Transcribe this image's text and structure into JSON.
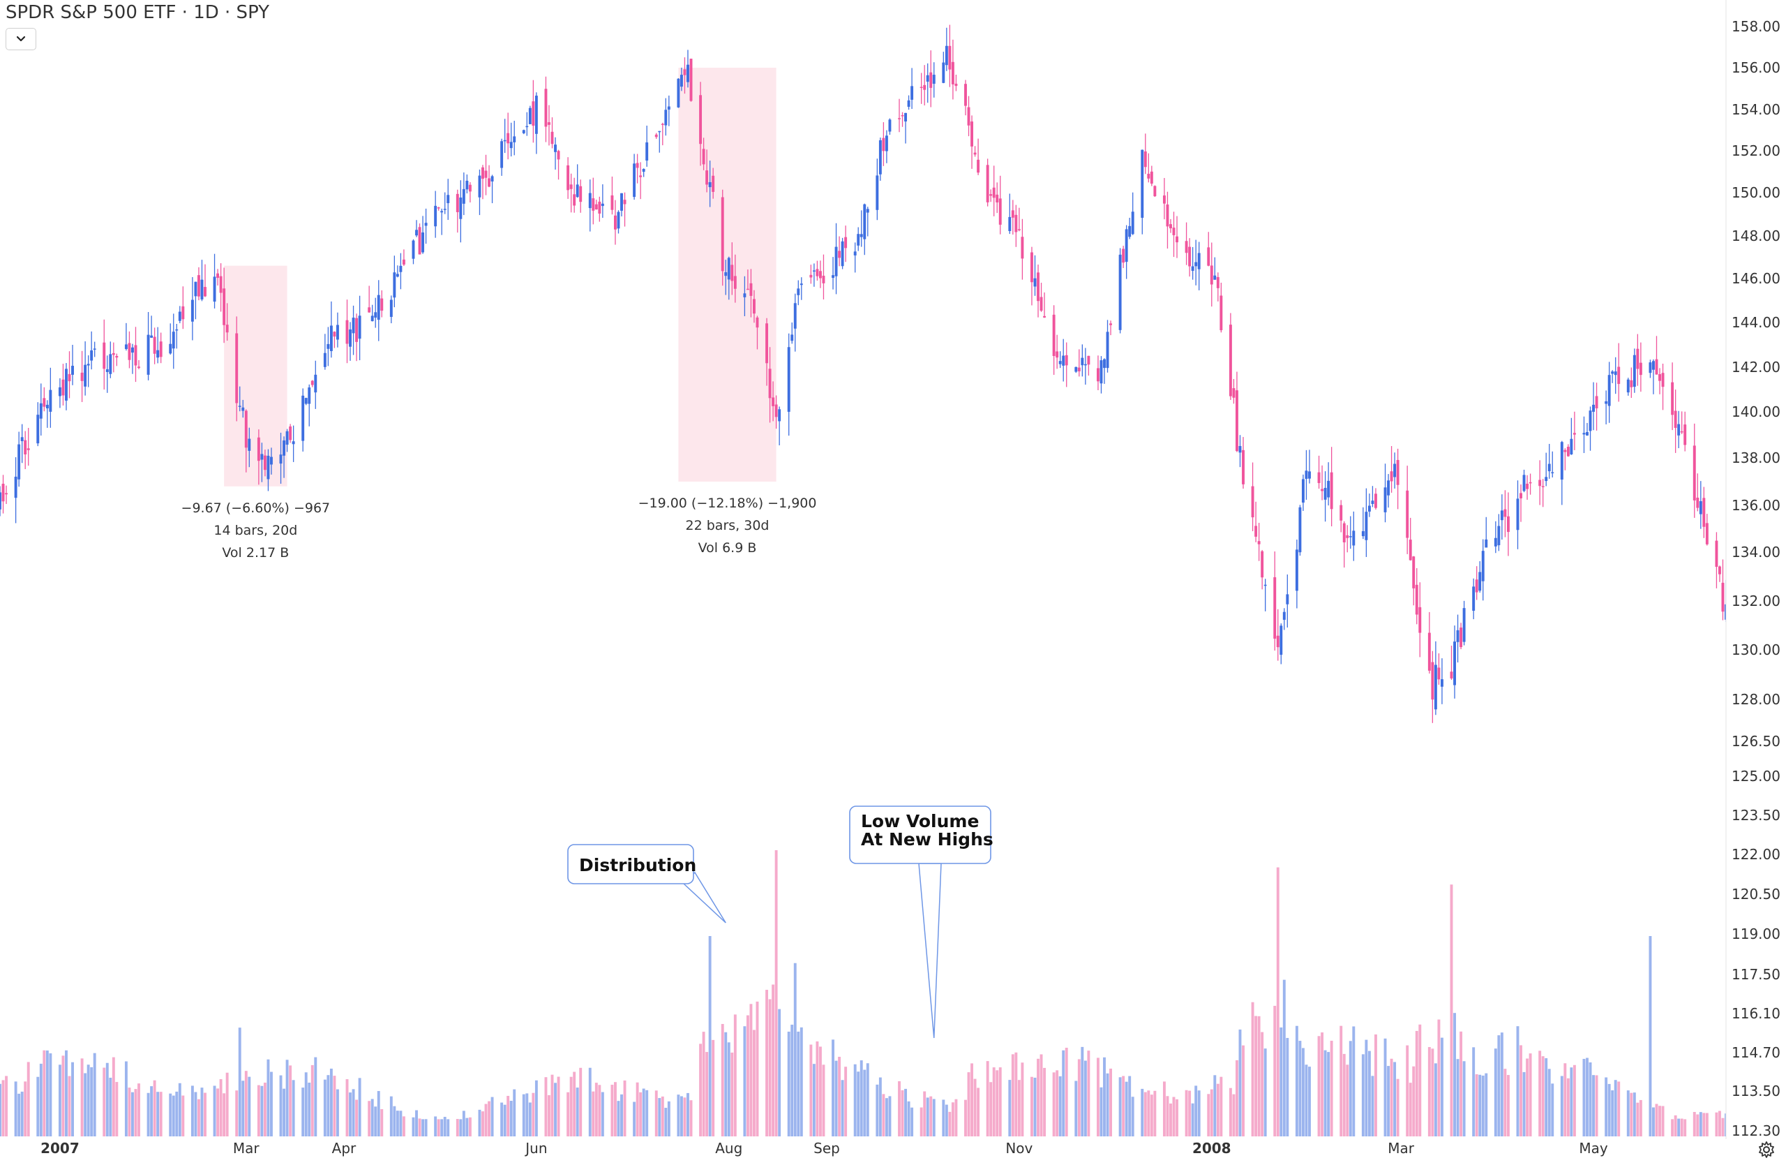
{
  "header": {
    "title": "SPDR S&P 500 ETF · 1D · SPY"
  },
  "colors": {
    "up": "#3d6ee0",
    "down": "#f0549c",
    "up_volume": "#9bb4ee",
    "down_volume": "#f5aacb",
    "range_highlight": "#fde7ec",
    "callout_border": "#6e96e6",
    "axis_text": "#333333"
  },
  "icons": {
    "dropdown": "chevron-down-icon",
    "settings": "gear-icon"
  },
  "measurements": [
    {
      "line1": "−9.67 (−6.60%) −967",
      "line2": "14 bars, 20d",
      "line3": "Vol 2.17 B",
      "from": "2007-02-22",
      "to": "2007-03-14",
      "high": 146.6,
      "low": 136.8
    },
    {
      "line1": "−19.00 (−12.18%) −1,900",
      "line2": "22 bars, 30d",
      "line3": "Vol 6.9 B",
      "from": "2007-07-16",
      "to": "2007-08-16",
      "high": 156.0,
      "low": 137.0
    }
  ],
  "callouts": [
    {
      "label_lines": [
        "Distribution"
      ],
      "points_to": "2007-07-31"
    },
    {
      "label_lines": [
        "Low Volume",
        "At New Highs"
      ],
      "points_to": "2007-10-05"
    }
  ],
  "chart_data": {
    "type": "candlestick",
    "title": "SPDR S&P 500 ETF · 1D · SPY",
    "x_axis": {
      "type": "date",
      "range": [
        "2006-12-13",
        "2008-06-12"
      ],
      "tick_labels": [
        {
          "label": "2007",
          "date": "2007-01-01",
          "bold": true
        },
        {
          "label": "Mar",
          "date": "2007-03-01",
          "bold": false
        },
        {
          "label": "Apr",
          "date": "2007-04-01",
          "bold": false
        },
        {
          "label": "Jun",
          "date": "2007-06-01",
          "bold": false
        },
        {
          "label": "Aug",
          "date": "2007-08-01",
          "bold": false
        },
        {
          "label": "Sep",
          "date": "2007-09-01",
          "bold": false
        },
        {
          "label": "Nov",
          "date": "2007-11-01",
          "bold": false
        },
        {
          "label": "2008",
          "date": "2008-01-01",
          "bold": true
        },
        {
          "label": "Mar",
          "date": "2008-03-01",
          "bold": false
        },
        {
          "label": "May",
          "date": "2008-05-01",
          "bold": false
        }
      ]
    },
    "y_axis": {
      "position": "right",
      "scale": "nonlinear-labelled",
      "tick_labels": [
        "158.00",
        "156.00",
        "154.00",
        "152.00",
        "150.00",
        "148.00",
        "146.00",
        "144.00",
        "142.00",
        "140.00",
        "138.00",
        "136.00",
        "134.00",
        "132.00",
        "130.00",
        "128.00",
        "126.50",
        "125.00",
        "123.50",
        "122.00",
        "120.50",
        "119.00",
        "117.50",
        "116.10",
        "114.70",
        "113.50",
        "112.30"
      ],
      "tick_values": [
        158,
        156,
        154,
        152,
        150,
        148,
        146,
        144,
        142,
        140,
        138,
        136,
        134,
        132,
        130,
        128,
        126.5,
        125,
        123.5,
        122,
        120.5,
        119,
        117.5,
        116.1,
        114.7,
        113.5,
        112.3
      ]
    },
    "price_keypoints": [
      [
        "2006-12-13",
        136.2
      ],
      [
        "2006-12-28",
        140.6
      ],
      [
        "2007-01-12",
        142.3
      ],
      [
        "2007-01-31",
        142.8
      ],
      [
        "2007-02-20",
        146.4
      ],
      [
        "2007-02-27",
        140.0
      ],
      [
        "2007-03-05",
        137.4
      ],
      [
        "2007-03-14",
        138.6
      ],
      [
        "2007-03-26",
        143.0
      ],
      [
        "2007-04-10",
        144.2
      ],
      [
        "2007-04-30",
        149.0
      ],
      [
        "2007-05-15",
        150.6
      ],
      [
        "2007-06-01",
        154.0
      ],
      [
        "2007-06-12",
        150.0
      ],
      [
        "2007-06-26",
        149.0
      ],
      [
        "2007-07-10",
        153.0
      ],
      [
        "2007-07-19",
        155.7
      ],
      [
        "2007-07-30",
        147.0
      ],
      [
        "2007-08-09",
        145.0
      ],
      [
        "2007-08-16",
        139.5
      ],
      [
        "2007-08-24",
        145.8
      ],
      [
        "2007-09-10",
        147.5
      ],
      [
        "2007-09-20",
        153.0
      ],
      [
        "2007-10-09",
        156.6
      ],
      [
        "2007-10-22",
        150.0
      ],
      [
        "2007-11-01",
        148.0
      ],
      [
        "2007-11-12",
        143.0
      ],
      [
        "2007-11-26",
        141.5
      ],
      [
        "2007-12-10",
        151.5
      ],
      [
        "2007-12-21",
        147.5
      ],
      [
        "2008-01-02",
        146.0
      ],
      [
        "2008-01-10",
        138.0
      ],
      [
        "2008-01-22",
        130.0
      ],
      [
        "2008-02-01",
        138.0
      ],
      [
        "2008-02-14",
        134.5
      ],
      [
        "2008-02-28",
        137.5
      ],
      [
        "2008-03-10",
        128.5
      ],
      [
        "2008-03-17",
        129.5
      ],
      [
        "2008-03-26",
        133.5
      ],
      [
        "2008-04-08",
        136.5
      ],
      [
        "2008-04-25",
        138.5
      ],
      [
        "2008-05-06",
        141.0
      ],
      [
        "2008-05-19",
        142.5
      ],
      [
        "2008-05-29",
        139.0
      ],
      [
        "2008-06-12",
        131.5
      ]
    ],
    "volume": {
      "baseline": "bottom",
      "peaks": [
        {
          "date": "2007-02-27",
          "relative": 0.38
        },
        {
          "date": "2007-07-26",
          "relative": 0.7
        },
        {
          "date": "2007-08-16",
          "relative": 1.0
        },
        {
          "date": "2008-01-22",
          "relative": 0.94
        },
        {
          "date": "2008-03-17",
          "relative": 0.88
        },
        {
          "date": "2008-05-19",
          "relative": 0.7
        }
      ]
    },
    "grid": false,
    "legend": "none"
  }
}
